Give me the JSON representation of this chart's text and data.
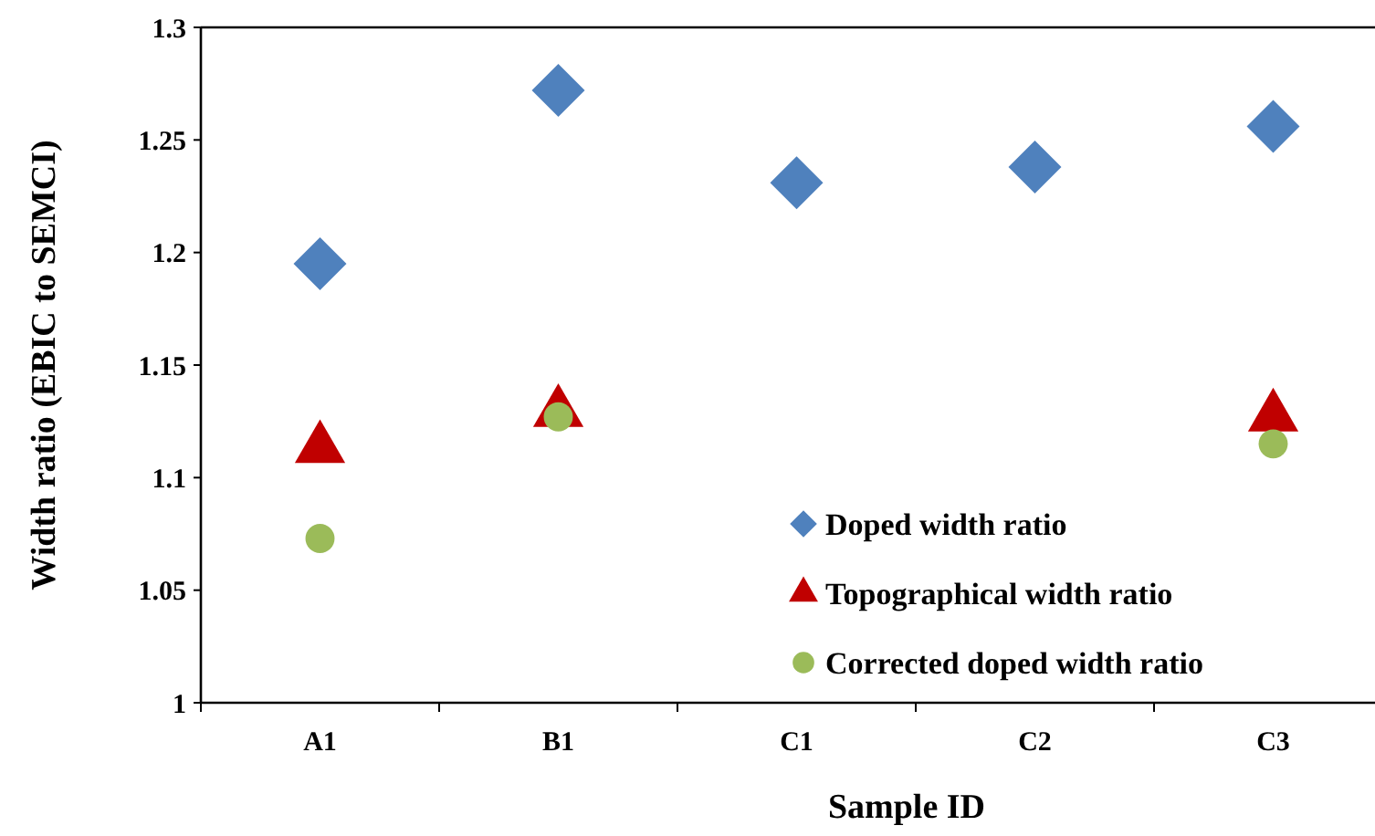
{
  "chart_data": {
    "type": "scatter",
    "xlabel": "Sample ID",
    "ylabel": "Width ratio (EBIC to SEMCI)",
    "categories": [
      "A1",
      "B1",
      "C1",
      "C2",
      "C3"
    ],
    "series": [
      {
        "name": "Doped width ratio",
        "color": "#4f81bd",
        "marker": "diamond",
        "values": [
          1.195,
          1.272,
          1.231,
          1.238,
          1.256
        ]
      },
      {
        "name": "Topographical width ratio",
        "color": "#c00000",
        "marker": "triangle",
        "values": [
          1.113,
          1.129,
          null,
          null,
          1.127
        ]
      },
      {
        "name": "Corrected doped width ratio",
        "color": "#9bbb59",
        "marker": "circle",
        "values": [
          1.073,
          1.127,
          null,
          null,
          1.115
        ]
      }
    ],
    "ylim": [
      1,
      1.3
    ],
    "yticks": [
      1,
      1.05,
      1.1,
      1.15,
      1.2,
      1.25,
      1.3
    ],
    "grid": false,
    "legend": "bottom right"
  }
}
